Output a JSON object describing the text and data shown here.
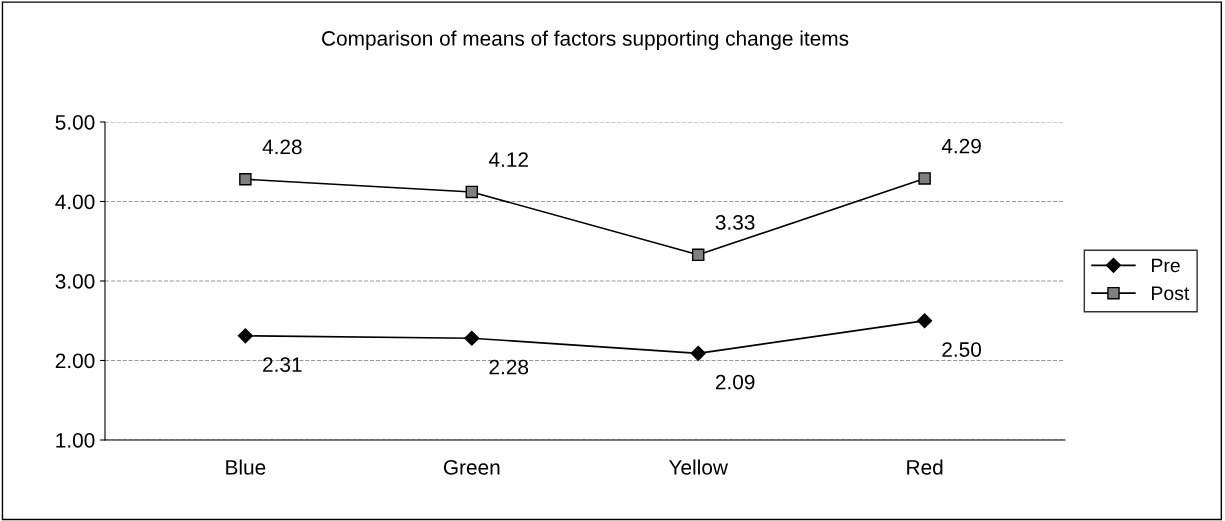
{
  "chart_data": {
    "type": "line",
    "title": "Comparison of means of factors supporting change items",
    "categories": [
      "Blue",
      "Green",
      "Yellow",
      "Red"
    ],
    "series": [
      {
        "name": "Pre",
        "color": "#000000",
        "marker": "diamond",
        "values": [
          2.31,
          2.28,
          2.09,
          2.5
        ],
        "value_labels": [
          "2.31",
          "2.28",
          "2.09",
          "2.50"
        ]
      },
      {
        "name": "Post",
        "color": "#808080",
        "marker": "square",
        "values": [
          4.28,
          4.12,
          3.33,
          4.29
        ],
        "value_labels": [
          "4.28",
          "4.12",
          "3.33",
          "4.29"
        ]
      }
    ],
    "ylim": [
      1,
      5
    ],
    "yticks": [
      {
        "value": 1,
        "label": "1.00"
      },
      {
        "value": 2,
        "label": "2.00"
      },
      {
        "value": 3,
        "label": "3.00"
      },
      {
        "value": 4,
        "label": "4.00"
      },
      {
        "value": 5,
        "label": "5.00"
      }
    ],
    "grid": "y",
    "legend": "right",
    "line_style": "solid"
  }
}
